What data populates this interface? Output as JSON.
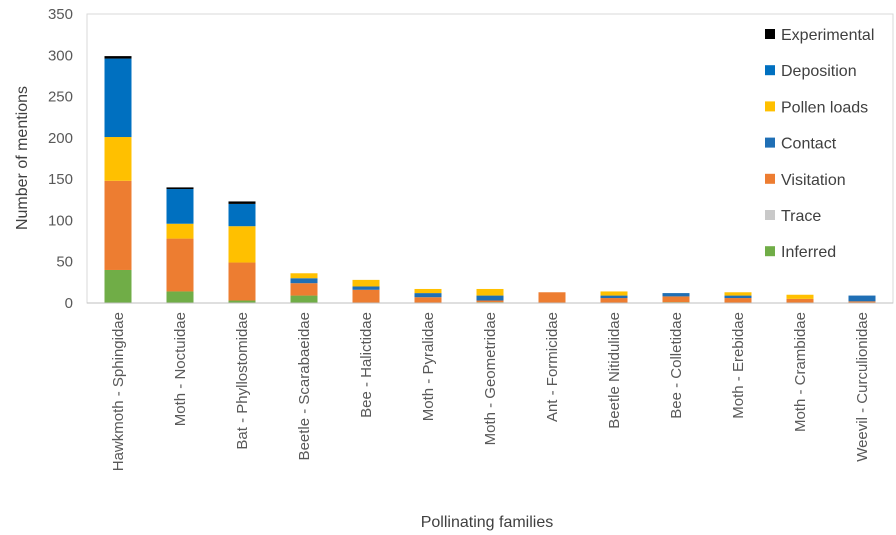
{
  "chart_data": {
    "type": "bar",
    "stacked": true,
    "title": "",
    "xlabel": "Pollinating families",
    "ylabel": "Number of mentions",
    "ylim": [
      0,
      350
    ],
    "yticks": [
      0,
      50,
      100,
      150,
      200,
      250,
      300,
      350
    ],
    "grid": false,
    "legend_position": "right",
    "categories": [
      "Hawkmoth - Sphingidae",
      "Moth - Noctuidae",
      "Bat - Phyllostomidae",
      "Beetle - Scarabaeidae",
      "Bee - Halictidae",
      "Moth - Pyralidae",
      "Moth - Geometridae",
      "Ant - Formicidae",
      "Beetle Nitidulidae",
      "Bee - Colletidae",
      "Moth - Erebidae",
      "Moth - Crambidae",
      "Weevil - Curculionidae"
    ],
    "series": [
      {
        "name": "Inferred",
        "color": "#70ad47",
        "values": [
          40,
          14,
          3,
          9,
          0,
          0,
          1,
          0,
          0,
          1,
          0,
          0,
          0
        ]
      },
      {
        "name": "Trace",
        "color": "#c9c9c9",
        "values": [
          0,
          0,
          0,
          0,
          0,
          0,
          0,
          0,
          0,
          0,
          0,
          0,
          0
        ]
      },
      {
        "name": "Visitation",
        "color": "#ed7d31",
        "values": [
          108,
          64,
          46,
          15,
          16,
          7,
          2,
          13,
          6,
          7,
          6,
          5,
          2
        ]
      },
      {
        "name": "Contact",
        "color": "#1f6fb5",
        "values": [
          0,
          0,
          0,
          6,
          4,
          5,
          6,
          0,
          3,
          4,
          3,
          0,
          7
        ]
      },
      {
        "name": "Pollen loads",
        "color": "#ffc000",
        "values": [
          53,
          18,
          44,
          6,
          8,
          5,
          8,
          0,
          5,
          0,
          4,
          5,
          0
        ]
      },
      {
        "name": "Deposition",
        "color": "#0070c0",
        "values": [
          95,
          42,
          27,
          0,
          0,
          0,
          0,
          0,
          0,
          0,
          0,
          0,
          0
        ]
      },
      {
        "name": "Experimental",
        "color": "#000000",
        "values": [
          3,
          2,
          3,
          0,
          0,
          0,
          0,
          0,
          0,
          0,
          0,
          0,
          0
        ]
      }
    ],
    "legend_order": [
      "Experimental",
      "Deposition",
      "Pollen loads",
      "Contact",
      "Visitation",
      "Trace",
      "Inferred"
    ]
  }
}
